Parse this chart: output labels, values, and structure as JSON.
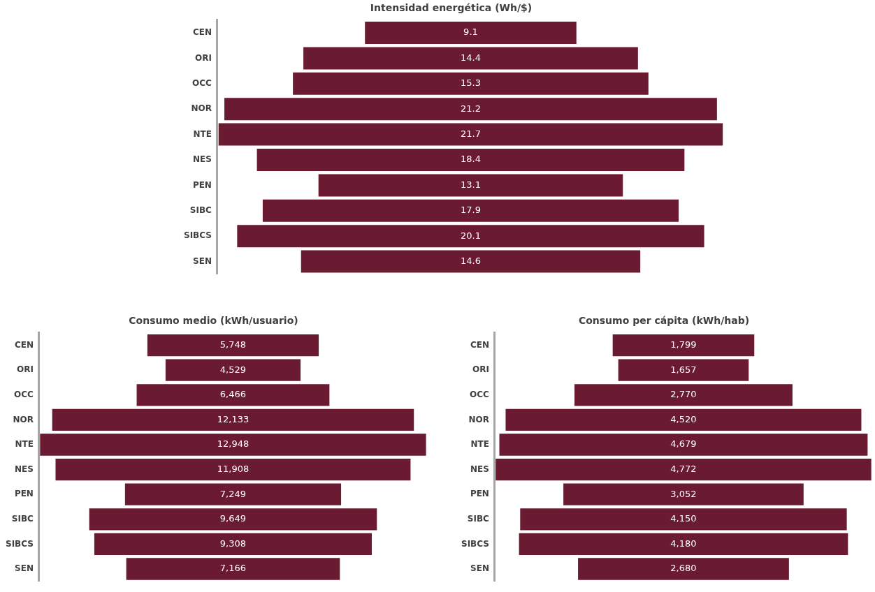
{
  "chart_data": [
    {
      "type": "other",
      "title": "Intensidad energética (Wh/$)",
      "categories": [
        "CEN",
        "ORI",
        "OCC",
        "NOR",
        "NTE",
        "NES",
        "PEN",
        "SIBC",
        "SIBCS",
        "SEN"
      ],
      "values": [
        9.1,
        14.4,
        15.3,
        21.2,
        21.7,
        18.4,
        13.1,
        17.9,
        20.1,
        14.6
      ],
      "color": "#6a1b31",
      "data_labels": true
    },
    {
      "type": "other",
      "title": "Consumo medio (kWh/usuario)",
      "categories": [
        "CEN",
        "ORI",
        "OCC",
        "NOR",
        "NTE",
        "NES",
        "PEN",
        "SIBC",
        "SIBCS",
        "SEN"
      ],
      "values": [
        5748,
        4529,
        6466,
        12133,
        12948,
        11908,
        7249,
        9649,
        9308,
        7166
      ],
      "value_labels": [
        "5,748",
        "4,529",
        "6,466",
        "12,133",
        "12,948",
        "11,908",
        "7,249",
        "9,649",
        "9,308",
        "7,166"
      ],
      "color": "#6a1b31"
    },
    {
      "type": "other",
      "title": "Consumo per cápita (kWh/hab)",
      "categories": [
        "CEN",
        "ORI",
        "OCC",
        "NOR",
        "NTE",
        "NES",
        "PEN",
        "SIBC",
        "SIBCS",
        "SEN"
      ],
      "values": [
        1799,
        1657,
        2770,
        4520,
        4679,
        4772,
        3052,
        4150,
        4180,
        2680
      ],
      "value_labels": [
        "1,799",
        "1,657",
        "2,770",
        "4,520",
        "4,679",
        "4,772",
        "3,052",
        "4,150",
        "4,180",
        "2,680"
      ],
      "color": "#6a1b31"
    }
  ]
}
